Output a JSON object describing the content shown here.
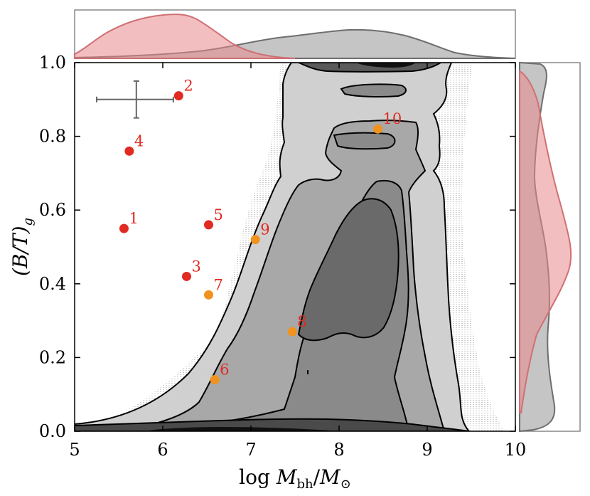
{
  "chart_data": {
    "type": "scatter",
    "xlabel_prefix": "log ",
    "xlabel_var": "M",
    "xlabel_sub": "bh",
    "xlabel_slash": "/",
    "xlabel_var2": "M",
    "xlabel_sub2": "⊙",
    "ylabel_main": "(B/T)",
    "ylabel_sub": "g",
    "xlim": [
      5,
      10
    ],
    "ylim": [
      0.0,
      1.0
    ],
    "xticks": [
      "5",
      "6",
      "7",
      "8",
      "9",
      "10"
    ],
    "yticks": [
      "0.0",
      "0.2",
      "0.4",
      "0.6",
      "0.8",
      "1.0"
    ],
    "xtick_values": [
      5,
      6,
      7,
      8,
      9,
      10
    ],
    "ytick_values": [
      0.0,
      0.2,
      0.4,
      0.6,
      0.8,
      1.0
    ],
    "background": "2D density contours of simulated galaxies (grey filled contours)",
    "error_bar": {
      "x": 5.7,
      "y": 0.9,
      "xerr_low": 0.45,
      "xerr_high": 0.42,
      "yerr": 0.05
    },
    "series": [
      {
        "name": "red points",
        "color": "#e02a22",
        "points": [
          {
            "label": "1",
            "x": 5.56,
            "y": 0.55
          },
          {
            "label": "2",
            "x": 6.18,
            "y": 0.91
          },
          {
            "label": "3",
            "x": 6.27,
            "y": 0.42
          },
          {
            "label": "4",
            "x": 5.62,
            "y": 0.76
          },
          {
            "label": "5",
            "x": 6.52,
            "y": 0.56
          }
        ]
      },
      {
        "name": "orange points",
        "color": "#f0931e",
        "points": [
          {
            "label": "6",
            "x": 6.59,
            "y": 0.14
          },
          {
            "label": "7",
            "x": 6.52,
            "y": 0.37
          },
          {
            "label": "8",
            "x": 7.47,
            "y": 0.27
          },
          {
            "label": "9",
            "x": 7.05,
            "y": 0.52
          },
          {
            "label": "10",
            "x": 8.44,
            "y": 0.82
          }
        ]
      }
    ],
    "marginal_top": {
      "red_color": "#e8898a",
      "grey_color": "#8c8c8c"
    },
    "marginal_right": {
      "red_color": "#e8898a",
      "grey_color": "#8c8c8c"
    }
  }
}
